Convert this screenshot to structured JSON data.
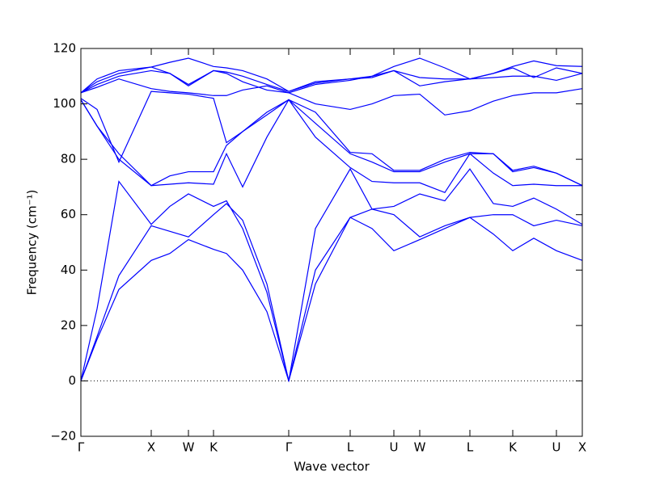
{
  "chart_data": {
    "type": "line",
    "xlabel": "Wave vector",
    "ylabel": "Frequency (cm⁻¹)",
    "x": [
      0,
      0.2,
      0.47,
      0.87,
      1.1,
      1.33,
      1.64,
      1.8,
      2.0,
      2.3,
      2.57,
      2.9,
      3.33,
      3.6,
      3.87,
      4.19,
      4.5,
      4.81,
      5.1,
      5.34,
      5.6,
      5.88,
      6.2
    ],
    "series": [
      {
        "color": "#0000ff",
        "values": [
          0,
          15,
          33,
          43.5,
          46,
          51,
          47.5,
          46,
          40,
          25,
          0,
          35,
          59,
          55,
          47,
          51,
          55,
          59,
          53,
          47,
          51.5,
          47,
          43.5
        ]
      },
      {
        "color": "#0000ff",
        "values": [
          0,
          16,
          38,
          56,
          54,
          52,
          60,
          64,
          58,
          35,
          0,
          40,
          59,
          62,
          60,
          52,
          56,
          59,
          60,
          60,
          56,
          58,
          56
        ]
      },
      {
        "color": "#0000ff",
        "values": [
          0,
          26,
          72,
          56.5,
          63,
          67.5,
          63,
          65,
          55,
          32,
          0,
          55,
          76.5,
          62,
          63,
          67.5,
          65,
          76.5,
          64,
          63,
          66,
          62,
          56.5
        ]
      },
      {
        "color": "#0000ff",
        "values": [
          101.5,
          92,
          80,
          70.5,
          71,
          71.5,
          71,
          82,
          70,
          88,
          101.5,
          88,
          77,
          72,
          71.5,
          71.5,
          68,
          82,
          75,
          70.5,
          71,
          70.5,
          70.5
        ]
      },
      {
        "color": "#0000ff",
        "values": [
          101.5,
          92,
          82,
          70.5,
          74,
          75.5,
          75.5,
          85,
          90,
          96,
          101.5,
          93,
          82,
          79,
          75.5,
          75.5,
          79,
          82,
          82,
          75.5,
          77,
          75,
          70.5
        ]
      },
      {
        "color": "#0000ff",
        "values": [
          102,
          98,
          79,
          104.5,
          104,
          103.5,
          102,
          86,
          90,
          97,
          101.5,
          97,
          82.5,
          82,
          76,
          76,
          80,
          82.5,
          82,
          76,
          77.5,
          75,
          70.5
        ]
      },
      {
        "color": "#0000ff",
        "values": [
          104,
          106,
          109,
          105.5,
          104.5,
          104,
          103,
          103,
          105,
          106.5,
          104,
          100,
          98,
          100,
          103,
          103.5,
          96,
          97.5,
          101,
          103,
          104,
          104,
          105.5
        ]
      },
      {
        "color": "#0000ff",
        "values": [
          104,
          107,
          110,
          112,
          111,
          106.5,
          112,
          111,
          108,
          105,
          104,
          107,
          108.5,
          110,
          112,
          106.5,
          108,
          109,
          109.5,
          110,
          110,
          108.5,
          111
        ]
      },
      {
        "color": "#0000ff",
        "values": [
          104,
          108,
          111,
          113.3,
          111,
          107,
          112,
          111.5,
          110,
          107,
          104.5,
          107.5,
          109,
          109.5,
          112,
          109.5,
          109,
          109,
          111,
          113,
          109.5,
          113,
          111
        ]
      },
      {
        "color": "#0000ff",
        "values": [
          104,
          109,
          112,
          113.3,
          115,
          116.5,
          113.5,
          113,
          112,
          109,
          104.5,
          108,
          109,
          110,
          113.5,
          116.5,
          113,
          109,
          111,
          113.5,
          115.5,
          113.8,
          113.5
        ]
      }
    ],
    "xlim": [
      0,
      6.2
    ],
    "xticks": [
      {
        "value": 0,
        "label": "Γ"
      },
      {
        "value": 0.87,
        "label": "X"
      },
      {
        "value": 1.33,
        "label": "W"
      },
      {
        "value": 1.64,
        "label": "K"
      },
      {
        "value": 2.57,
        "label": "Γ"
      },
      {
        "value": 3.33,
        "label": "L"
      },
      {
        "value": 3.87,
        "label": "U"
      },
      {
        "value": 4.19,
        "label": "W"
      },
      {
        "value": 4.81,
        "label": "L"
      },
      {
        "value": 5.34,
        "label": "K"
      },
      {
        "value": 5.88,
        "label": "U"
      },
      {
        "value": 6.2,
        "label": "X"
      }
    ],
    "ylim": [
      -20,
      120
    ],
    "yticks": [
      {
        "value": -20,
        "label": "−20"
      },
      0,
      20,
      40,
      60,
      80,
      100,
      120
    ],
    "zero_line": true
  }
}
